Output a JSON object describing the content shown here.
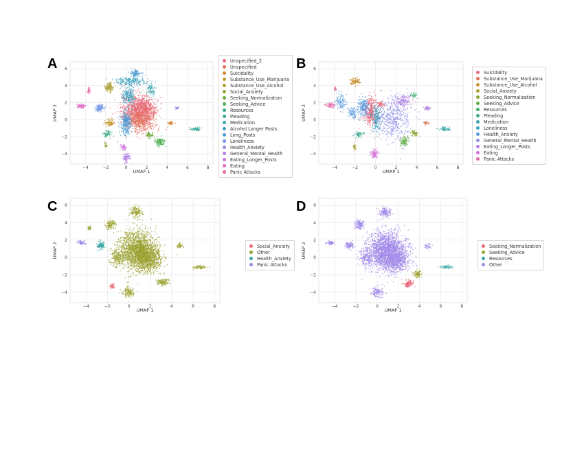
{
  "chart_data": [
    {
      "type": "scatter",
      "panel": "A",
      "xlabel": "UMAP 1",
      "ylabel": "UMAP 2",
      "xlim": [
        -5.5,
        8.5
      ],
      "ylim": [
        -5.2,
        6.8
      ],
      "xticks": [
        -4,
        -2,
        0,
        2,
        4,
        6,
        8
      ],
      "yticks": [
        -4,
        -2,
        0,
        2,
        4,
        6
      ],
      "grid": true,
      "legend": "right-outside",
      "series": [
        {
          "name": "Unspecified_2",
          "color": "#e8687a"
        },
        {
          "name": "Unspecified",
          "color": "#e0714e"
        },
        {
          "name": "Suicidality",
          "color": "#d38a32"
        },
        {
          "name": "Substance_Use_Marijuana",
          "color": "#c19a2e"
        },
        {
          "name": "Substance_Use_Alcohol",
          "color": "#a99f2f"
        },
        {
          "name": "Social_Anxiety",
          "color": "#94a434"
        },
        {
          "name": "Seeking_Normalization",
          "color": "#6faa39"
        },
        {
          "name": "Seeking_Advice",
          "color": "#46ad4e"
        },
        {
          "name": "Resources",
          "color": "#3aab83"
        },
        {
          "name": "Pleading",
          "color": "#3aa899"
        },
        {
          "name": "Medication",
          "color": "#3aa5ac"
        },
        {
          "name": "Alcohol Longer Posts",
          "color": "#3ca0be"
        },
        {
          "name": "Long_Posts",
          "color": "#4a9ad3"
        },
        {
          "name": "Loneliness",
          "color": "#6a93e2"
        },
        {
          "name": "Health_Anxiety",
          "color": "#918ae8"
        },
        {
          "name": "General_Mental_Health",
          "color": "#b27fe6"
        },
        {
          "name": "Eating_Longer_Posts",
          "color": "#cf73df"
        },
        {
          "name": "Eating",
          "color": "#e068c7"
        },
        {
          "name": "Panic Attacks",
          "color": "#e565a5"
        }
      ]
    },
    {
      "type": "scatter",
      "panel": "B",
      "xlabel": "UMAP 1",
      "ylabel": "UMAP 2",
      "xlim": [
        -5.5,
        8.5
      ],
      "ylim": [
        -5.2,
        6.8
      ],
      "xticks": [
        -4,
        -2,
        0,
        2,
        4,
        6,
        8
      ],
      "yticks": [
        -4,
        -2,
        0,
        2,
        4,
        6
      ],
      "grid": true,
      "legend": "right-outside",
      "series": [
        {
          "name": "Suicidality",
          "color": "#e8687a"
        },
        {
          "name": "Substance_Use_Marijuana",
          "color": "#e0714e"
        },
        {
          "name": "Substance_Use_Alcohol",
          "color": "#c9902f"
        },
        {
          "name": "Social_Anxiety",
          "color": "#a99f2f"
        },
        {
          "name": "Seeking_Normalization",
          "color": "#8ba532"
        },
        {
          "name": "Seeking_Advice",
          "color": "#5fab3e"
        },
        {
          "name": "Resources",
          "color": "#3fac6a"
        },
        {
          "name": "Pleading",
          "color": "#3aaa8e"
        },
        {
          "name": "Medication",
          "color": "#3aa6a6"
        },
        {
          "name": "Loneliness",
          "color": "#3ca0be"
        },
        {
          "name": "Health_Anxiety",
          "color": "#5598dc"
        },
        {
          "name": "General_Mental_Health",
          "color": "#8a8ce8"
        },
        {
          "name": "Eating_Longer_Posts",
          "color": "#b27fe6"
        },
        {
          "name": "Eating",
          "color": "#d873d9"
        },
        {
          "name": "Panic Attacks",
          "color": "#e565a5"
        }
      ]
    },
    {
      "type": "scatter",
      "panel": "C",
      "xlabel": "UMAP 1",
      "ylabel": "UMAP 2",
      "xlim": [
        -5.5,
        8.5
      ],
      "ylim": [
        -5.2,
        6.8
      ],
      "xticks": [
        -4,
        -2,
        0,
        2,
        4,
        6,
        8
      ],
      "yticks": [
        -4,
        -2,
        0,
        2,
        4,
        6
      ],
      "grid": true,
      "legend": "right-outside",
      "series": [
        {
          "name": "Social_Anxiety",
          "color": "#e8687a"
        },
        {
          "name": "Other",
          "color": "#9aa02e"
        },
        {
          "name": "Health_Anxiety",
          "color": "#3aa6a6"
        },
        {
          "name": "Panic Attacks",
          "color": "#918ae8"
        }
      ]
    },
    {
      "type": "scatter",
      "panel": "D",
      "xlabel": "UMAP 1",
      "ylabel": "UMAP 2",
      "xlim": [
        -5.5,
        8.5
      ],
      "ylim": [
        -5.2,
        6.8
      ],
      "xticks": [
        -4,
        -2,
        0,
        2,
        4,
        6,
        8
      ],
      "yticks": [
        -4,
        -2,
        0,
        2,
        4,
        6
      ],
      "grid": true,
      "legend": "right-outside",
      "series": [
        {
          "name": "Seeking_Normalization",
          "color": "#e8687a"
        },
        {
          "name": "Seeking_Advice",
          "color": "#9aa02e"
        },
        {
          "name": "Resources",
          "color": "#3aa6a6"
        },
        {
          "name": "Other",
          "color": "#a08ae8"
        }
      ]
    }
  ]
}
